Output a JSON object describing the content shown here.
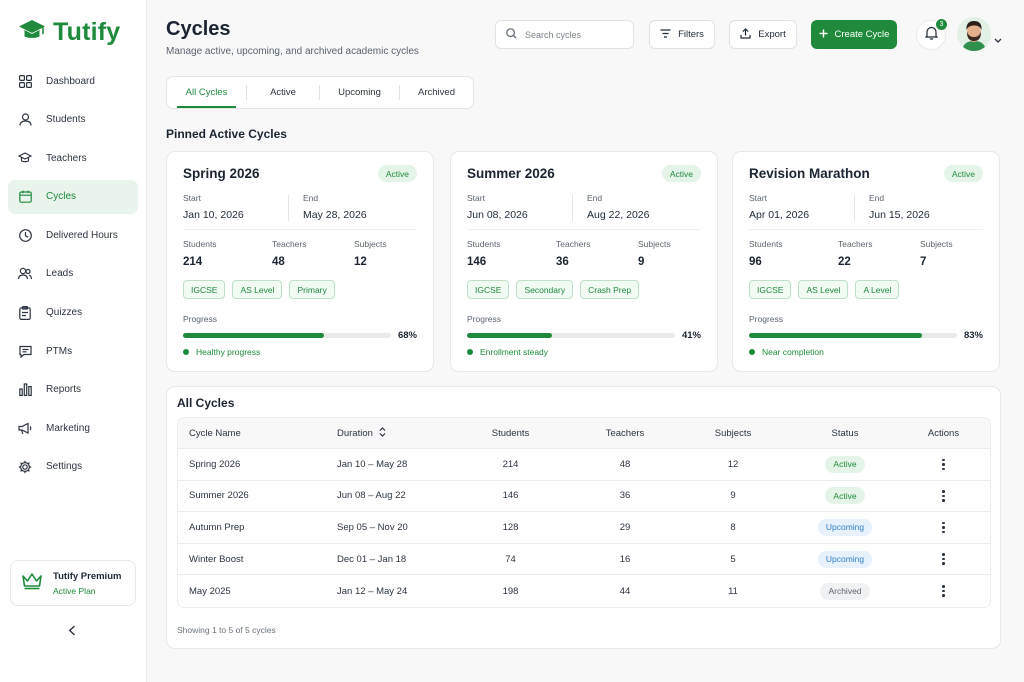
{
  "app": {
    "name": "Tutify"
  },
  "sidebar": {
    "items": [
      {
        "label": "Dashboard",
        "icon": "grid-icon",
        "active": false
      },
      {
        "label": "Students",
        "icon": "user-icon",
        "active": false
      },
      {
        "label": "Teachers",
        "icon": "graduation-cap-icon",
        "active": false
      },
      {
        "label": "Cycles",
        "icon": "calendar-icon",
        "active": true
      },
      {
        "label": "Delivered Hours",
        "icon": "clock-icon",
        "active": false
      },
      {
        "label": "Leads",
        "icon": "users-icon",
        "active": false
      },
      {
        "label": "Quizzes",
        "icon": "clipboard-icon",
        "active": false
      },
      {
        "label": "PTMs",
        "icon": "chat-icon",
        "active": false
      },
      {
        "label": "Reports",
        "icon": "bar-chart-icon",
        "active": false
      },
      {
        "label": "Marketing",
        "icon": "megaphone-icon",
        "active": false
      },
      {
        "label": "Settings",
        "icon": "gear-icon",
        "active": false
      }
    ],
    "premium": {
      "title": "Tutify Premium",
      "subtitle": "Active Plan"
    }
  },
  "header": {
    "title": "Cycles",
    "subtitle": "Manage active, upcoming, and archived academic cycles",
    "search_placeholder": "Search cycles",
    "filters_label": "Filters",
    "export_label": "Export",
    "create_label": "Create Cycle",
    "notification_count": "3"
  },
  "tabs": [
    {
      "label": "All Cycles",
      "active": true
    },
    {
      "label": "Active",
      "active": false
    },
    {
      "label": "Upcoming",
      "active": false
    },
    {
      "label": "Archived",
      "active": false
    }
  ],
  "pinned": {
    "title": "Pinned Active Cycles",
    "start_label": "Start",
    "end_label": "End",
    "students_label": "Students",
    "teachers_label": "Teachers",
    "subjects_label": "Subjects",
    "progress_label": "Progress",
    "cards": [
      {
        "title": "Spring 2026",
        "status": "Active",
        "start": "Jan 10, 2026",
        "end": "May 28, 2026",
        "students": "214",
        "teachers": "48",
        "subjects": "12",
        "tags": [
          "IGCSE",
          "AS Level",
          "Primary"
        ],
        "progress": 68,
        "progress_text": "68%",
        "health": "Healthy progress"
      },
      {
        "title": "Summer 2026",
        "status": "Active",
        "start": "Jun 08, 2026",
        "end": "Aug 22, 2026",
        "students": "146",
        "teachers": "36",
        "subjects": "9",
        "tags": [
          "IGCSE",
          "Secondary",
          "Crash Prep"
        ],
        "progress": 41,
        "progress_text": "41%",
        "health": "Enrollment steady"
      },
      {
        "title": "Revision Marathon",
        "status": "Active",
        "start": "Apr 01, 2026",
        "end": "Jun 15, 2026",
        "students": "96",
        "teachers": "22",
        "subjects": "7",
        "tags": [
          "IGCSE",
          "AS Level",
          "A Level"
        ],
        "progress": 83,
        "progress_text": "83%",
        "health": "Near completion"
      }
    ]
  },
  "all_cycles": {
    "title": "All Cycles",
    "columns": {
      "name": "Cycle Name",
      "duration": "Duration",
      "students": "Students",
      "teachers": "Teachers",
      "subjects": "Subjects",
      "status": "Status",
      "actions": "Actions"
    },
    "rows": [
      {
        "name": "Spring 2026",
        "duration": "Jan 10 – May 28",
        "students": "214",
        "teachers": "48",
        "subjects": "12",
        "status": "Active"
      },
      {
        "name": "Summer 2026",
        "duration": "Jun 08 – Aug 22",
        "students": "146",
        "teachers": "36",
        "subjects": "9",
        "status": "Active"
      },
      {
        "name": "Autumn Prep",
        "duration": "Sep 05 – Nov 20",
        "students": "128",
        "teachers": "29",
        "subjects": "8",
        "status": "Upcoming"
      },
      {
        "name": "Winter Boost",
        "duration": "Dec 01 – Jan 18",
        "students": "74",
        "teachers": "16",
        "subjects": "5",
        "status": "Upcoming"
      },
      {
        "name": "May 2025",
        "duration": "Jan 12 – May 24",
        "students": "198",
        "teachers": "44",
        "subjects": "11",
        "status": "Archived"
      }
    ],
    "footer": "Showing 1 to 5 of 5 cycles"
  },
  "colors": {
    "brand": "#1f8a3b",
    "active_bg": "#e4f4e8",
    "upcoming": "#2f7fc9",
    "archived": "#5b6470"
  }
}
